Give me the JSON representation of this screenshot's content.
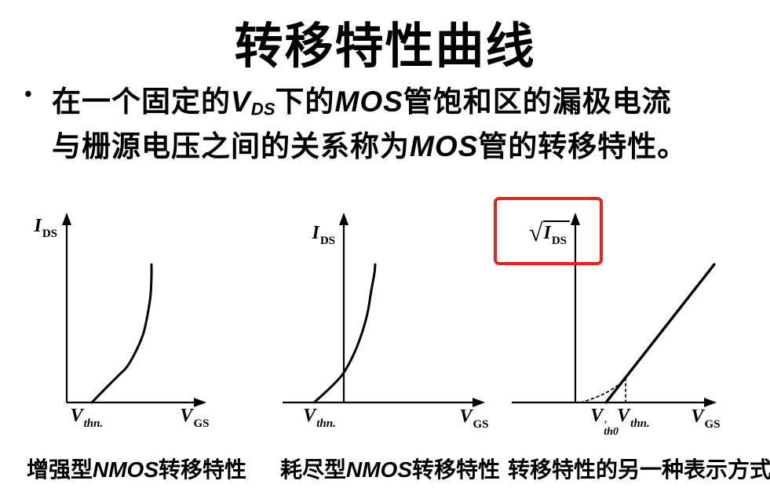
{
  "slide": {
    "title": "转移特性曲线",
    "bullet": {
      "marker": "•",
      "line1_parts": [
        {
          "t": "在一个固定的",
          "s": "cn"
        },
        {
          "t": "V",
          "s": "lat"
        },
        {
          "t": "DS",
          "s": "lsub"
        },
        {
          "t": "下的",
          "s": "cn"
        },
        {
          "t": "MOS",
          "s": "lat"
        },
        {
          "t": "管饱和区的漏极电流",
          "s": "cn"
        }
      ],
      "line2_parts": [
        {
          "t": "与栅源电压之间的关系称为",
          "s": "cn"
        },
        {
          "t": "MOS",
          "s": "lat"
        },
        {
          "t": "管的转移特性。",
          "s": "cn"
        }
      ]
    }
  },
  "figures": [
    {
      "caption_parts": [
        {
          "t": "增强型",
          "s": "cn"
        },
        {
          "t": "NMOS",
          "s": "lat"
        },
        {
          "t": "转移特性",
          "s": "cn"
        }
      ],
      "y_label": {
        "sqrt": false,
        "parts": [
          {
            "t": "I",
            "s": "v"
          },
          {
            "t": "DS",
            "s": "vs"
          }
        ]
      },
      "x_label": {
        "parts": [
          {
            "t": "V",
            "s": "v"
          },
          {
            "t": "GS",
            "s": "vs"
          }
        ]
      },
      "ticks": [
        {
          "x": 0.145,
          "parts": [
            {
              "t": "V",
              "s": "v"
            },
            {
              "t": "thn.",
              "s": "vsi"
            }
          ]
        }
      ]
    },
    {
      "caption_parts": [
        {
          "t": "耗尽型",
          "s": "cn"
        },
        {
          "t": "NMOS",
          "s": "lat"
        },
        {
          "t": "转移特性",
          "s": "cn"
        }
      ],
      "y_label": {
        "sqrt": false,
        "parts": [
          {
            "t": "I",
            "s": "v"
          },
          {
            "t": "DS",
            "s": "vs"
          }
        ]
      },
      "x_label": {
        "parts": [
          {
            "t": "V",
            "s": "v"
          },
          {
            "t": "GS",
            "s": "vs"
          }
        ]
      },
      "ticks": [
        {
          "x": -0.172,
          "parts": [
            {
              "t": "V",
              "s": "v"
            },
            {
              "t": "thn.",
              "s": "vsi"
            }
          ]
        }
      ]
    },
    {
      "caption_parts": [
        {
          "t": "转移特性的另一种表示方式",
          "s": "cn"
        }
      ],
      "y_label": {
        "sqrt": true,
        "parts": [
          {
            "t": "I",
            "s": "v"
          },
          {
            "t": "DS",
            "s": "vs"
          }
        ]
      },
      "x_label": {
        "parts": [
          {
            "t": "V",
            "s": "v"
          },
          {
            "t": "GS",
            "s": "vs"
          }
        ]
      },
      "ticks": [
        {
          "x": 0.206,
          "parts": [
            {
              "t": "V",
              "s": "v"
            },
            {
              "s": "stk",
              "top": "′",
              "bot": "th0"
            }
          ]
        },
        {
          "x": 0.411,
          "parts": [
            {
              "t": "V",
              "s": "v"
            },
            {
              "t": "thn.",
              "s": "vsi"
            }
          ]
        }
      ]
    }
  ],
  "chart_data": [
    {
      "id": "enhancement-nmos-transfer",
      "type": "line",
      "title": "增强型NMOS转移特性",
      "xlabel": "V_GS",
      "ylabel": "I_DS",
      "x_ticks": [
        {
          "label": "V_thn",
          "x": 0.145
        }
      ],
      "x_range": [
        0,
        1
      ],
      "y_range": [
        0,
        1
      ],
      "grid": false,
      "series": [
        {
          "name": "I_DS vs V_GS",
          "style": "solid",
          "points": [
            [
              0.183,
              0
            ],
            [
              0.27,
              0.065
            ],
            [
              0.38,
              0.145
            ],
            [
              0.44,
              0.19
            ],
            [
              0.51,
              0.28
            ],
            [
              0.56,
              0.37
            ],
            [
              0.59,
              0.47
            ],
            [
              0.61,
              0.565
            ],
            [
              0.617,
              0.665
            ],
            [
              0.617,
              0.73
            ]
          ]
        }
      ],
      "note": "current rises from a positive threshold voltage V_thn"
    },
    {
      "id": "depletion-nmos-transfer",
      "type": "line",
      "title": "耗尽型NMOS转移特性",
      "xlabel": "V_GS",
      "ylabel": "I_DS",
      "x_ticks": [
        {
          "label": "V_thn",
          "x": -0.172
        }
      ],
      "x_range": [
        -0.45,
        1
      ],
      "y_range": [
        0,
        1
      ],
      "grid": false,
      "series": [
        {
          "name": "I_DS vs V_GS",
          "style": "solid",
          "points": [
            [
              -0.21,
              0
            ],
            [
              -0.13,
              0.054
            ],
            [
              -0.056,
              0.108
            ],
            [
              0,
              0.158
            ],
            [
              0.067,
              0.25
            ],
            [
              0.122,
              0.353
            ],
            [
              0.167,
              0.47
            ],
            [
              0.194,
              0.59
            ],
            [
              0.217,
              0.685
            ],
            [
              0.222,
              0.73
            ]
          ]
        }
      ],
      "note": "current rises from a negative threshold V_thn, crossing the I_DS axis"
    },
    {
      "id": "sqrt-ids-transfer",
      "type": "line",
      "title": "转移特性的另一种表示方式",
      "xlabel": "V_GS",
      "ylabel": "sqrt(I_DS)",
      "x_ticks": [
        {
          "label": "V'_th0",
          "x": 0.206
        },
        {
          "label": "V_thn",
          "x": 0.411
        }
      ],
      "x_range": [
        -0.45,
        1
      ],
      "y_range": [
        0,
        1
      ],
      "grid": false,
      "series": [
        {
          "name": "extrapolated straight line",
          "style": "solid",
          "points": [
            [
              0.217,
              0
            ],
            [
              0.983,
              0.73
            ]
          ]
        },
        {
          "name": "actual characteristic near threshold",
          "style": "dotted",
          "points": [
            [
              0.04,
              0
            ],
            [
              0.12,
              0.02
            ],
            [
              0.2,
              0.045
            ],
            [
              0.27,
              0.075
            ],
            [
              0.32,
              0.102
            ],
            [
              0.356,
              0.132
            ]
          ]
        },
        {
          "name": "vertical guide at V_thn",
          "style": "dotted",
          "points": [
            [
              0.356,
              0
            ],
            [
              0.356,
              0.132
            ]
          ]
        }
      ],
      "annotation": "red highlight box drawn around the sqrt(I_DS) axis label"
    }
  ],
  "colors": {
    "highlight_box": "#e3251d",
    "ink": "#000000",
    "background": "#ffffff"
  }
}
